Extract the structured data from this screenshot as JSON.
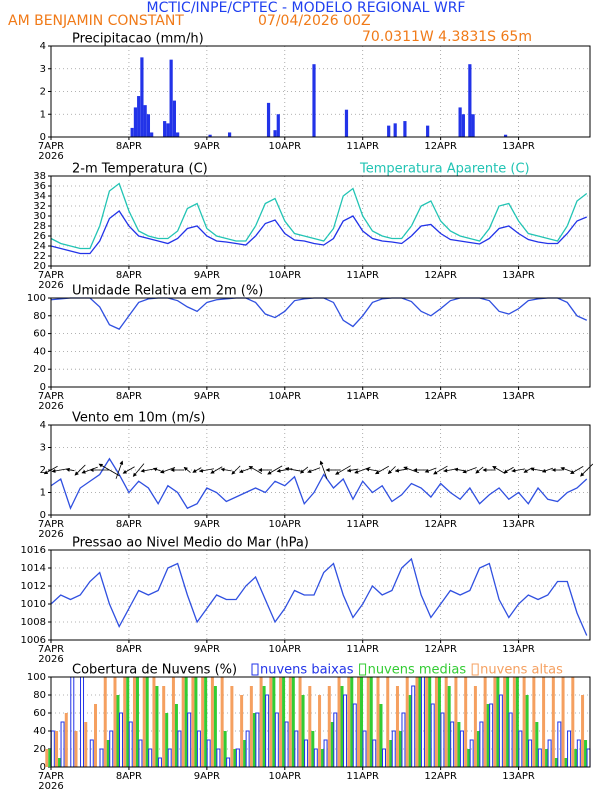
{
  "header": {
    "title": "MCTIC/INPE/CPTEC - MODELO REGIONAL WRF",
    "station": "AM BENJAMIN CONSTANT",
    "datetime": "07/04/2026 00Z",
    "location": "70.0311W 4.3831S 65m"
  },
  "chart_data": [
    {
      "type": "bar",
      "title": "Precipitacao (mm/h)",
      "color": "#2233e8",
      "x": [
        25,
        26,
        27,
        28,
        29,
        30,
        31,
        35,
        36,
        37,
        38,
        39,
        49,
        55,
        67,
        69,
        70,
        81,
        91,
        104,
        106,
        109,
        116,
        126,
        127,
        129,
        130,
        140
      ],
      "values": [
        0.4,
        1.3,
        1.8,
        3.5,
        1.4,
        1.0,
        0.2,
        0.7,
        0.6,
        3.4,
        1.6,
        0.2,
        0.1,
        0.2,
        1.5,
        0.3,
        1.0,
        3.2,
        1.2,
        0.5,
        0.6,
        0.7,
        0.5,
        1.3,
        1.0,
        3.2,
        1.0,
        0.1
      ],
      "xlim": [
        0,
        166
      ],
      "xticks": [
        {
          "value": 0,
          "label": "7APR"
        },
        {
          "value": 24,
          "label": "8APR"
        },
        {
          "value": 48,
          "label": "9APR"
        },
        {
          "value": 72,
          "label": "10APR"
        },
        {
          "value": 96,
          "label": "11APR"
        },
        {
          "value": 120,
          "label": "12APR"
        },
        {
          "value": 144,
          "label": "13APR"
        }
      ],
      "year": "2026",
      "ylim": [
        0,
        4
      ],
      "yticks": [
        0,
        1,
        2,
        3,
        4
      ],
      "grid": true
    },
    {
      "type": "line",
      "title": "2-m Temperatura (C)",
      "x": [
        0,
        3,
        6,
        9,
        12,
        15,
        18,
        21,
        24,
        27,
        30,
        33,
        36,
        39,
        42,
        45,
        48,
        51,
        54,
        57,
        60,
        63,
        66,
        69,
        72,
        75,
        78,
        81,
        84,
        87,
        90,
        93,
        96,
        99,
        102,
        105,
        108,
        111,
        114,
        117,
        120,
        123,
        126,
        129,
        132,
        135,
        138,
        141,
        144,
        147,
        150,
        153,
        156,
        159,
        162,
        165
      ],
      "series": [
        {
          "color": "#2233e8",
          "values": [
            24,
            23.5,
            23,
            22.5,
            22.5,
            25,
            29.5,
            31,
            28,
            26,
            25.5,
            25,
            24.5,
            25.5,
            27.5,
            28,
            26,
            25,
            24.8,
            24.5,
            24.2,
            26,
            28.5,
            29.2,
            26.5,
            25.2,
            25,
            24.5,
            24.2,
            25.5,
            29,
            30,
            27,
            25.5,
            25,
            24.8,
            24.5,
            26,
            28,
            28.3,
            26.5,
            25.3,
            25,
            24.7,
            24.4,
            25.5,
            27.5,
            28,
            26.5,
            25.3,
            24.8,
            24.5,
            24.5,
            26.5,
            29,
            29.8
          ]
        },
        {
          "name": "Temperatura Aparente (C)",
          "color": "#22c4b4",
          "values": [
            25.5,
            24.5,
            24,
            23.5,
            23.5,
            28,
            35,
            36.5,
            31,
            27,
            26,
            25.5,
            25.5,
            27,
            31.5,
            32.5,
            27.5,
            26,
            25.5,
            25,
            25,
            28,
            32.5,
            33.5,
            29,
            26.5,
            26,
            25.5,
            25,
            27.5,
            34,
            35.5,
            30,
            27,
            26,
            25.5,
            25.5,
            28,
            32,
            33,
            29,
            27,
            26,
            25.5,
            25,
            27.5,
            32,
            32.5,
            29,
            26.5,
            26,
            25.5,
            25,
            28,
            33,
            34.5
          ]
        }
      ],
      "xlim": [
        0,
        166
      ],
      "xticks": [
        {
          "value": 0,
          "label": "7APR"
        },
        {
          "value": 24,
          "label": "8APR"
        },
        {
          "value": 48,
          "label": "9APR"
        },
        {
          "value": 72,
          "label": "10APR"
        },
        {
          "value": 96,
          "label": "11APR"
        },
        {
          "value": 120,
          "label": "12APR"
        },
        {
          "value": 144,
          "label": "13APR"
        }
      ],
      "year": "2026",
      "ylim": [
        20,
        38
      ],
      "yticks": [
        20,
        22,
        24,
        26,
        28,
        30,
        32,
        34,
        36,
        38
      ],
      "grid": true
    },
    {
      "type": "line",
      "title": "Umidade Relativa em 2m (%)",
      "x": [
        0,
        3,
        6,
        9,
        12,
        15,
        18,
        21,
        24,
        27,
        30,
        33,
        36,
        39,
        42,
        45,
        48,
        51,
        54,
        57,
        60,
        63,
        66,
        69,
        72,
        75,
        78,
        81,
        84,
        87,
        90,
        93,
        96,
        99,
        102,
        105,
        108,
        111,
        114,
        117,
        120,
        123,
        126,
        129,
        132,
        135,
        138,
        141,
        144,
        147,
        150,
        153,
        156,
        159,
        162,
        165
      ],
      "series": [
        {
          "color": "#3050e0",
          "values": [
            98,
            99,
            100,
            100,
            100,
            90,
            70,
            65,
            80,
            95,
            99,
            100,
            100,
            97,
            90,
            85,
            95,
            98,
            99,
            100,
            100,
            95,
            82,
            78,
            85,
            97,
            99,
            100,
            100,
            95,
            75,
            68,
            80,
            95,
            99,
            100,
            100,
            96,
            85,
            80,
            88,
            97,
            100,
            100,
            100,
            97,
            85,
            82,
            88,
            97,
            99,
            100,
            100,
            95,
            80,
            75
          ]
        }
      ],
      "xlim": [
        0,
        166
      ],
      "xticks": [
        {
          "value": 0,
          "label": "7APR"
        },
        {
          "value": 24,
          "label": "8APR"
        },
        {
          "value": 48,
          "label": "9APR"
        },
        {
          "value": 72,
          "label": "10APR"
        },
        {
          "value": 96,
          "label": "11APR"
        },
        {
          "value": 120,
          "label": "12APR"
        },
        {
          "value": 144,
          "label": "13APR"
        }
      ],
      "year": "2026",
      "ylim": [
        0,
        100
      ],
      "yticks": [
        0,
        20,
        40,
        60,
        80,
        100
      ],
      "grid": true
    },
    {
      "type": "wind",
      "title": "Vento em 10m (m/s)",
      "x": [
        0,
        3,
        6,
        9,
        12,
        15,
        18,
        21,
        24,
        27,
        30,
        33,
        36,
        39,
        42,
        45,
        48,
        51,
        54,
        57,
        60,
        63,
        66,
        69,
        72,
        75,
        78,
        81,
        84,
        87,
        90,
        93,
        96,
        99,
        102,
        105,
        108,
        111,
        114,
        117,
        120,
        123,
        126,
        129,
        132,
        135,
        138,
        141,
        144,
        147,
        150,
        153,
        156,
        159,
        162,
        165
      ],
      "series": [
        {
          "color": "#3050e0",
          "values": [
            1.3,
            1.6,
            0.3,
            1.2,
            1.5,
            1.8,
            2.5,
            1.8,
            1.0,
            1.5,
            1.2,
            0.5,
            1.3,
            1.0,
            0.3,
            0.5,
            1.2,
            1.0,
            0.6,
            0.8,
            1.0,
            1.2,
            1.0,
            1.5,
            1.3,
            1.7,
            0.5,
            1.0,
            1.8,
            1.2,
            1.6,
            0.7,
            1.5,
            1.0,
            1.3,
            0.6,
            0.9,
            1.4,
            1.2,
            0.8,
            1.4,
            1.0,
            0.7,
            1.2,
            0.5,
            0.9,
            1.2,
            0.7,
            1.0,
            0.5,
            1.2,
            0.7,
            0.6,
            1.0,
            1.2,
            1.6
          ],
          "directions": [
            60,
            80,
            100,
            45,
            70,
            90,
            120,
            200,
            60,
            40,
            80,
            110,
            70,
            90,
            130,
            60,
            80,
            60,
            100,
            45,
            70,
            120,
            90,
            60,
            80,
            100,
            50,
            70,
            160,
            90,
            60,
            80,
            70,
            100,
            60,
            45,
            80,
            110,
            90,
            70,
            60,
            80,
            100,
            70,
            50,
            90,
            120,
            60,
            80,
            60,
            100,
            70,
            90,
            110,
            60,
            45
          ]
        }
      ],
      "xlim": [
        0,
        166
      ],
      "xticks": [
        {
          "value": 0,
          "label": "7APR"
        },
        {
          "value": 24,
          "label": "8APR"
        },
        {
          "value": 48,
          "label": "9APR"
        },
        {
          "value": 72,
          "label": "10APR"
        },
        {
          "value": 96,
          "label": "11APR"
        },
        {
          "value": 120,
          "label": "12APR"
        },
        {
          "value": 144,
          "label": "13APR"
        }
      ],
      "year": "2026",
      "ylim": [
        0,
        4
      ],
      "yticks": [
        0,
        1,
        2,
        3,
        4
      ],
      "grid": true
    },
    {
      "type": "line",
      "title": "Pressao ao Nivel Medio do Mar (hPa)",
      "x": [
        0,
        3,
        6,
        9,
        12,
        15,
        18,
        21,
        24,
        27,
        30,
        33,
        36,
        39,
        42,
        45,
        48,
        51,
        54,
        57,
        60,
        63,
        66,
        69,
        72,
        75,
        78,
        81,
        84,
        87,
        90,
        93,
        96,
        99,
        102,
        105,
        108,
        111,
        114,
        117,
        120,
        123,
        126,
        129,
        132,
        135,
        138,
        141,
        144,
        147,
        150,
        153,
        156,
        159,
        162,
        165
      ],
      "series": [
        {
          "color": "#3050e0",
          "values": [
            1010,
            1011,
            1010.5,
            1011,
            1012.5,
            1013.5,
            1010,
            1007.5,
            1009.5,
            1011.5,
            1011,
            1011.5,
            1014,
            1014.5,
            1011,
            1008,
            1009.5,
            1011,
            1010.5,
            1010.5,
            1012,
            1013,
            1010.5,
            1008,
            1009.5,
            1011.5,
            1011,
            1011,
            1013.5,
            1014.5,
            1011,
            1008.5,
            1010,
            1012,
            1011,
            1011.5,
            1014,
            1015,
            1011,
            1008.5,
            1010,
            1011.5,
            1011,
            1011.5,
            1014,
            1014.5,
            1010.5,
            1008.5,
            1010,
            1011,
            1010.5,
            1011,
            1012.5,
            1012.5,
            1009,
            1006.5
          ]
        }
      ],
      "xlim": [
        0,
        166
      ],
      "xticks": [
        {
          "value": 0,
          "label": "7APR"
        },
        {
          "value": 24,
          "label": "8APR"
        },
        {
          "value": 48,
          "label": "9APR"
        },
        {
          "value": 72,
          "label": "10APR"
        },
        {
          "value": 96,
          "label": "11APR"
        },
        {
          "value": 120,
          "label": "12APR"
        },
        {
          "value": 144,
          "label": "13APR"
        }
      ],
      "year": "2026",
      "ylim": [
        1006,
        1016
      ],
      "yticks": [
        1006,
        1008,
        1010,
        1012,
        1014,
        1016
      ],
      "grid": true
    },
    {
      "type": "bar",
      "title": "Cobertura de Nuvens (%)",
      "x": [
        0,
        3,
        6,
        9,
        12,
        15,
        18,
        21,
        24,
        27,
        30,
        33,
        36,
        39,
        42,
        45,
        48,
        51,
        54,
        57,
        60,
        63,
        66,
        69,
        72,
        75,
        78,
        81,
        84,
        87,
        90,
        93,
        96,
        99,
        102,
        105,
        108,
        111,
        114,
        117,
        120,
        123,
        126,
        129,
        132,
        135,
        138,
        141,
        144,
        147,
        150,
        153,
        156,
        159,
        162,
        165
      ],
      "series": [
        {
          "name": "nuvens baixas",
          "color": "#2233e8",
          "values": [
            40,
            50,
            100,
            100,
            30,
            20,
            40,
            60,
            50,
            30,
            20,
            10,
            20,
            40,
            60,
            40,
            30,
            20,
            10,
            20,
            40,
            60,
            80,
            60,
            50,
            40,
            30,
            20,
            30,
            60,
            80,
            70,
            40,
            30,
            20,
            40,
            60,
            90,
            100,
            70,
            60,
            50,
            40,
            30,
            50,
            70,
            80,
            60,
            40,
            30,
            20,
            30,
            50,
            40,
            30,
            20
          ]
        },
        {
          "name": "nuvens medias",
          "color": "#33cc33",
          "values": [
            20,
            10,
            0,
            0,
            0,
            0,
            30,
            80,
            100,
            100,
            100,
            90,
            60,
            70,
            100,
            100,
            100,
            90,
            40,
            20,
            30,
            60,
            90,
            100,
            100,
            100,
            80,
            40,
            20,
            50,
            90,
            100,
            100,
            100,
            70,
            30,
            40,
            80,
            100,
            100,
            100,
            90,
            50,
            20,
            40,
            70,
            100,
            100,
            100,
            80,
            50,
            20,
            10,
            10,
            20,
            30
          ]
        },
        {
          "name": "nuvens altas",
          "color": "#f5a060",
          "values": [
            20,
            40,
            60,
            40,
            50,
            70,
            100,
            100,
            100,
            100,
            100,
            100,
            90,
            100,
            100,
            100,
            100,
            100,
            100,
            90,
            80,
            90,
            100,
            100,
            100,
            100,
            100,
            90,
            80,
            90,
            100,
            100,
            100,
            100,
            100,
            100,
            90,
            100,
            100,
            100,
            100,
            100,
            100,
            100,
            90,
            100,
            100,
            100,
            100,
            100,
            100,
            100,
            100,
            100,
            100,
            80
          ]
        }
      ],
      "xlim": [
        0,
        166
      ],
      "xticks": [
        {
          "value": 0,
          "label": "7APR"
        },
        {
          "value": 24,
          "label": "8APR"
        },
        {
          "value": 48,
          "label": "9APR"
        },
        {
          "value": 72,
          "label": "10APR"
        },
        {
          "value": 96,
          "label": "11APR"
        },
        {
          "value": 120,
          "label": "12APR"
        },
        {
          "value": 144,
          "label": "13APR"
        }
      ],
      "year": "2026",
      "ylim": [
        0,
        100
      ],
      "yticks": [
        0,
        20,
        40,
        60,
        80,
        100
      ],
      "grid": true
    }
  ]
}
